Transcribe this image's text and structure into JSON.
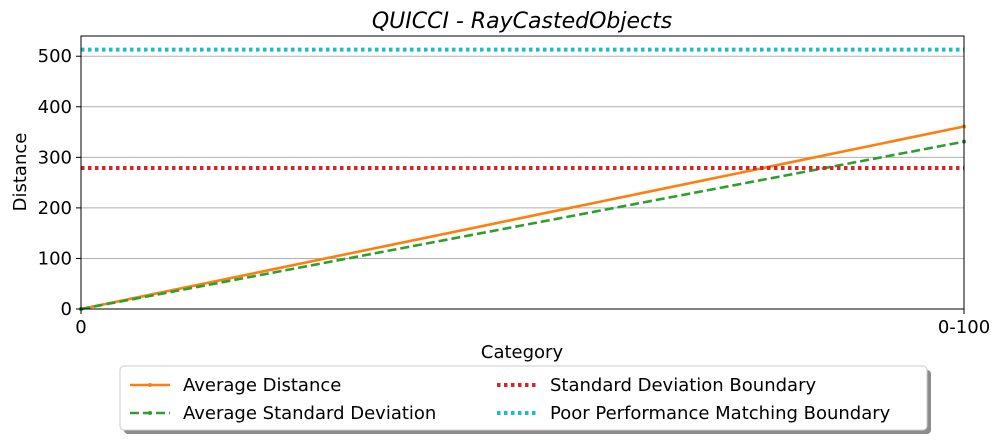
{
  "chart_data": {
    "type": "line",
    "title": "QUICCI - RayCastedObjects",
    "xlabel": "Category",
    "ylabel": "Distance",
    "categories": [
      "0",
      "0-100"
    ],
    "ylim": [
      0,
      540
    ],
    "yticks": [
      0,
      100,
      200,
      300,
      400,
      500
    ],
    "grid": "y",
    "legend_position": "bottom-center",
    "series": [
      {
        "name": "Average Distance",
        "values": [
          0,
          361
        ],
        "color": "#ff7f0e",
        "style": "solid"
      },
      {
        "name": "Average Standard Deviation",
        "values": [
          0,
          331
        ],
        "color": "#2ca02c",
        "style": "dashed"
      },
      {
        "name": "Standard Deviation Boundary",
        "values": [
          279,
          279
        ],
        "color": "#d62728",
        "style": "dotted"
      },
      {
        "name": "Poor Performance Matching Boundary",
        "values": [
          513,
          513
        ],
        "color": "#17becf",
        "style": "dotted"
      }
    ]
  }
}
